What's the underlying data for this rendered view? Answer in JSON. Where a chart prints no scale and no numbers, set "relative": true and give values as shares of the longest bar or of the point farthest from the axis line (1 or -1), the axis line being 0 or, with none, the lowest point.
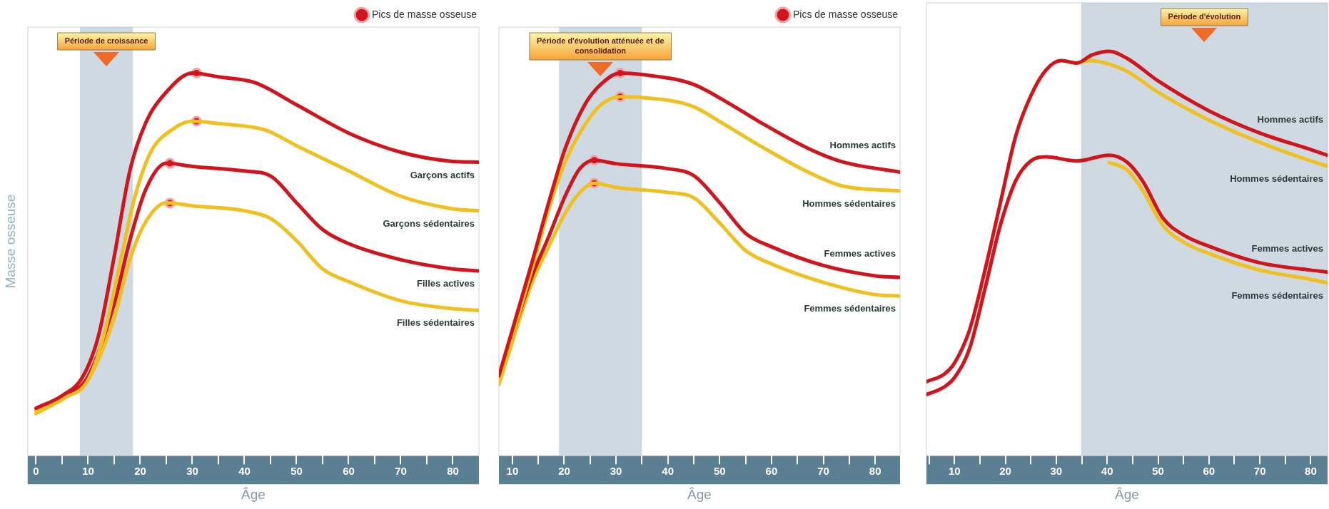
{
  "chart_data": [
    {
      "type": "line",
      "relative": true,
      "xlabel": "Âge",
      "ylabel": "Masse osseuse",
      "xlim": [
        -1.6,
        85
      ],
      "xticks": [
        0,
        {
          "value": 5,
          "label": null
        },
        10,
        {
          "value": 15,
          "label": null
        },
        20,
        {
          "value": 25,
          "label": null
        },
        30,
        {
          "value": 35,
          "label": null
        },
        40,
        {
          "value": 45,
          "label": null
        },
        50,
        {
          "value": 55,
          "label": null
        },
        60,
        {
          "value": 65,
          "label": null
        },
        70,
        {
          "value": 75,
          "label": null
        },
        80
      ],
      "legend": "top right",
      "bands": [
        {
          "axis": "x",
          "from": 8.4,
          "to": 18.6,
          "label": "Période de croissance",
          "color": "#9fb3c6"
        }
      ],
      "series": [
        {
          "name": "Garçons actifs",
          "color": "#d0161c",
          "x": [
            0,
            5,
            9,
            12,
            15,
            18,
            21,
            25,
            30,
            35,
            42,
            50,
            60,
            70,
            80,
            85
          ],
          "values": [
            0.124,
            0.157,
            0.207,
            0.314,
            0.52,
            0.744,
            0.868,
            0.95,
            1.0,
            0.99,
            0.975,
            0.917,
            0.843,
            0.793,
            0.769,
            0.767
          ]
        },
        {
          "name": "Garçons sédentaires",
          "color": "#f0c020",
          "x": [
            0,
            5,
            10,
            13,
            16,
            19,
            22,
            26,
            30,
            35,
            44,
            50,
            60,
            70,
            80,
            85
          ],
          "values": [
            0.116,
            0.149,
            0.198,
            0.314,
            0.496,
            0.678,
            0.793,
            0.851,
            0.874,
            0.868,
            0.851,
            0.81,
            0.744,
            0.678,
            0.645,
            0.64
          ]
        },
        {
          "name": "Filles actives",
          "color": "#d0161c",
          "x": [
            6,
            10,
            15,
            18,
            21,
            25,
            30,
            40,
            45,
            50,
            55,
            60,
            70,
            80,
            85
          ],
          "values": [
            0.157,
            0.207,
            0.397,
            0.562,
            0.694,
            0.764,
            0.756,
            0.744,
            0.731,
            0.661,
            0.591,
            0.554,
            0.512,
            0.488,
            0.483
          ]
        },
        {
          "name": "Filles sédentaires",
          "color": "#f0c020",
          "x": [
            0,
            6,
            10,
            15,
            18,
            21,
            25,
            30,
            40,
            45,
            50,
            55,
            60,
            70,
            80,
            85
          ],
          "values": [
            0.11,
            0.155,
            0.2,
            0.36,
            0.512,
            0.61,
            0.661,
            0.653,
            0.64,
            0.62,
            0.562,
            0.488,
            0.455,
            0.405,
            0.384,
            0.38
          ]
        },
        {
          "name": "Pics de masse osseuse",
          "type": "scatter",
          "color": "#d0161c",
          "x": [
            30.8,
            30.8,
            25.7,
            25.7
          ],
          "values": [
            1.0,
            0.874,
            0.764,
            0.66
          ]
        }
      ]
    },
    {
      "type": "line",
      "relative": true,
      "xlabel": "Âge",
      "xlim": [
        7.4,
        84.8
      ],
      "xticks": [
        10,
        {
          "value": 15,
          "label": null
        },
        20,
        {
          "value": 25,
          "label": null
        },
        30,
        {
          "value": 35,
          "label": null
        },
        40,
        {
          "value": 45,
          "label": null
        },
        50,
        {
          "value": 55,
          "label": null
        },
        60,
        {
          "value": 65,
          "label": null
        },
        70,
        {
          "value": 75,
          "label": null
        },
        80
      ],
      "legend": "top right",
      "bands": [
        {
          "axis": "x",
          "from": 19,
          "to": 35,
          "label": "Période d'évolution atténuée et de consolidation",
          "color": "#9fb3c6"
        }
      ],
      "series": [
        {
          "name": "Hommes actifs",
          "color": "#d0161c",
          "x": [
            7.4,
            13.7,
            17,
            20.2,
            24,
            27.2,
            30.8,
            35,
            44.6,
            51,
            57.5,
            67.1,
            73.6,
            84.8
          ],
          "values": [
            0.209,
            0.501,
            0.661,
            0.803,
            0.918,
            0.972,
            1.0,
            0.996,
            0.972,
            0.927,
            0.874,
            0.803,
            0.768,
            0.741
          ]
        },
        {
          "name": "Hommes sédentaires",
          "color": "#f0c020",
          "x": [
            7.4,
            13.7,
            17,
            20.2,
            24,
            27.2,
            30.8,
            35,
            44.6,
            51,
            57.5,
            67.1,
            73.6,
            84.8
          ],
          "values": [
            0.191,
            0.484,
            0.643,
            0.768,
            0.865,
            0.918,
            0.938,
            0.936,
            0.914,
            0.865,
            0.812,
            0.741,
            0.705,
            0.692
          ]
        },
        {
          "name": "Femmes actives",
          "color": "#d0161c",
          "x": [
            7.4,
            13.7,
            17,
            20.2,
            23,
            25.8,
            30,
            40,
            45,
            50,
            55,
            60,
            70,
            80,
            84.8
          ],
          "values": [
            0.2,
            0.466,
            0.572,
            0.679,
            0.75,
            0.772,
            0.763,
            0.75,
            0.732,
            0.661,
            0.581,
            0.546,
            0.497,
            0.47,
            0.466
          ]
        },
        {
          "name": "Femmes sédentaires",
          "color": "#f0c020",
          "x": [
            7.4,
            13.7,
            17,
            20.2,
            23,
            25.8,
            30,
            40,
            45,
            50,
            55,
            60,
            70,
            80,
            84.8
          ],
          "values": [
            0.186,
            0.448,
            0.546,
            0.634,
            0.688,
            0.712,
            0.701,
            0.688,
            0.674,
            0.608,
            0.536,
            0.501,
            0.453,
            0.421,
            0.417
          ]
        },
        {
          "name": "Pics de masse osseuse",
          "type": "scatter",
          "color": "#d0161c",
          "x": [
            30.8,
            30.8,
            25.8,
            25.8
          ],
          "values": [
            1.0,
            0.938,
            0.772,
            0.712
          ]
        }
      ]
    },
    {
      "type": "line",
      "relative": true,
      "xlabel": "Âge",
      "xlim": [
        4.5,
        83.3
      ],
      "xticks": [
        {
          "value": 5,
          "label": null
        },
        10,
        {
          "value": 15,
          "label": null
        },
        20,
        {
          "value": 25,
          "label": null
        },
        30,
        {
          "value": 35,
          "label": null
        },
        40,
        {
          "value": 45,
          "label": null
        },
        50,
        {
          "value": 55,
          "label": null
        },
        60,
        {
          "value": 65,
          "label": null
        },
        70,
        {
          "value": 75,
          "label": null
        },
        80
      ],
      "bands": [
        {
          "axis": "x",
          "from": 34.9,
          "to": 83.3,
          "label": "Période d'évolution",
          "color": "#9fb3c6"
        }
      ],
      "series": [
        {
          "name": "Hommes actifs",
          "color": "#d0161c",
          "x": [
            4.5,
            8,
            10,
            13,
            16,
            19,
            22,
            25,
            28,
            31,
            34,
            37,
            40.4,
            44,
            50,
            60,
            70,
            80,
            83.3
          ],
          "values": [
            0.183,
            0.202,
            0.229,
            0.312,
            0.459,
            0.624,
            0.789,
            0.89,
            0.954,
            0.977,
            0.971,
            0.991,
            1.0,
            0.982,
            0.927,
            0.853,
            0.798,
            0.757,
            0.743
          ]
        },
        {
          "name": "Hommes sédentaires",
          "color": "#f0c020",
          "x": [
            34,
            37,
            40.4,
            44,
            50,
            60,
            70,
            80,
            83.3
          ],
          "values": [
            0.971,
            0.977,
            0.968,
            0.95,
            0.899,
            0.83,
            0.775,
            0.729,
            0.716
          ]
        },
        {
          "name": "Femmes actives",
          "color": "#d0161c",
          "x": [
            4.5,
            8,
            10,
            13,
            16,
            19,
            22,
            25,
            28,
            34,
            40.4,
            44,
            47,
            51,
            55,
            60,
            70,
            80,
            83.3
          ],
          "values": [
            0.151,
            0.17,
            0.193,
            0.266,
            0.413,
            0.569,
            0.679,
            0.729,
            0.739,
            0.729,
            0.743,
            0.725,
            0.679,
            0.587,
            0.546,
            0.518,
            0.477,
            0.459,
            0.454
          ]
        },
        {
          "name": "Femmes sédentaires",
          "color": "#f0c020",
          "x": [
            40.4,
            44,
            47,
            51,
            55,
            60,
            70,
            80,
            83.3
          ],
          "values": [
            0.725,
            0.706,
            0.656,
            0.569,
            0.528,
            0.5,
            0.459,
            0.436,
            0.427
          ]
        }
      ]
    }
  ]
}
